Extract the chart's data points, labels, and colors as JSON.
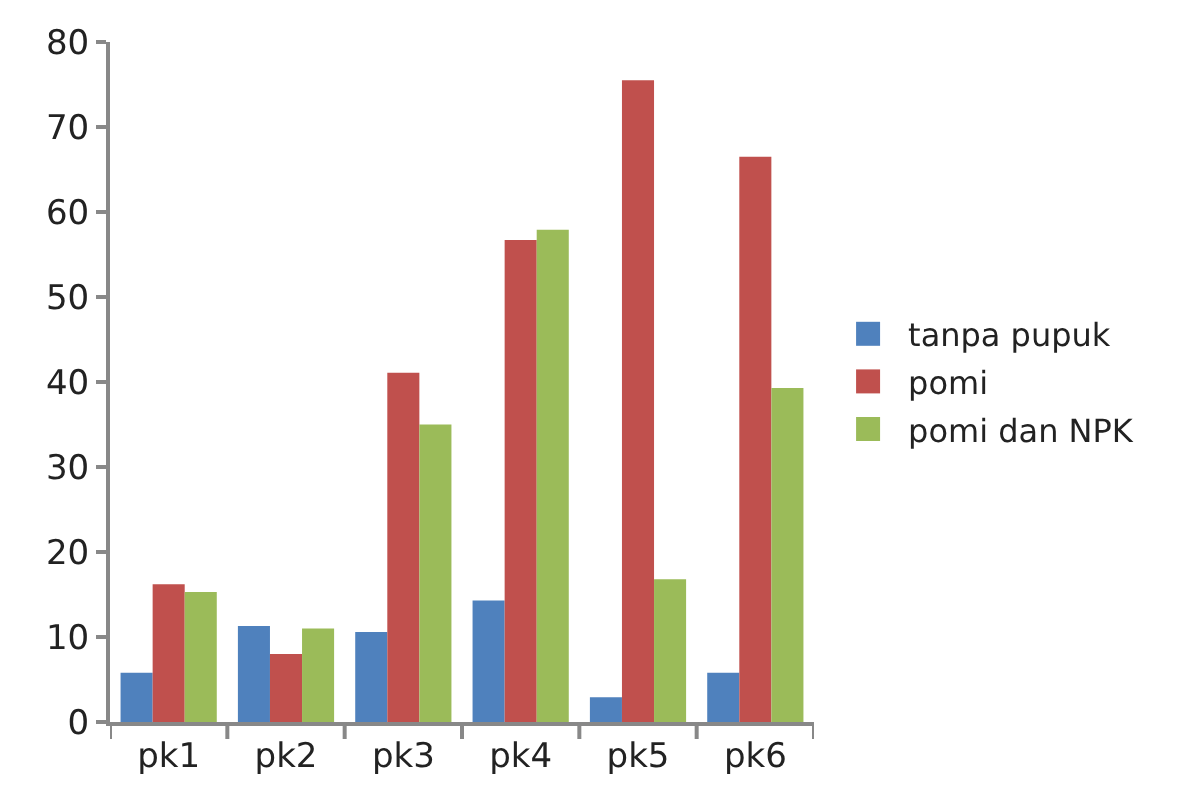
{
  "chart_data": {
    "type": "bar",
    "categories": [
      "pk1",
      "pk2",
      "pk3",
      "pk4",
      "pk5",
      "pk6"
    ],
    "series": [
      {
        "name": "tanpa pupuk",
        "color": "#4f81bd",
        "values": [
          5.8,
          11.3,
          10.6,
          14.3,
          2.9,
          5.8
        ]
      },
      {
        "name": "pomi",
        "color": "#c0504d",
        "values": [
          16.2,
          8.0,
          41.1,
          56.7,
          75.5,
          66.5
        ]
      },
      {
        "name": "pomi dan NPK",
        "color": "#9bbb59",
        "values": [
          15.3,
          11.0,
          35.0,
          57.9,
          16.8,
          39.3
        ]
      }
    ],
    "ylim": [
      0,
      80
    ],
    "yticks": [
      0,
      10,
      20,
      30,
      40,
      50,
      60,
      70,
      80
    ],
    "legend": "right"
  }
}
